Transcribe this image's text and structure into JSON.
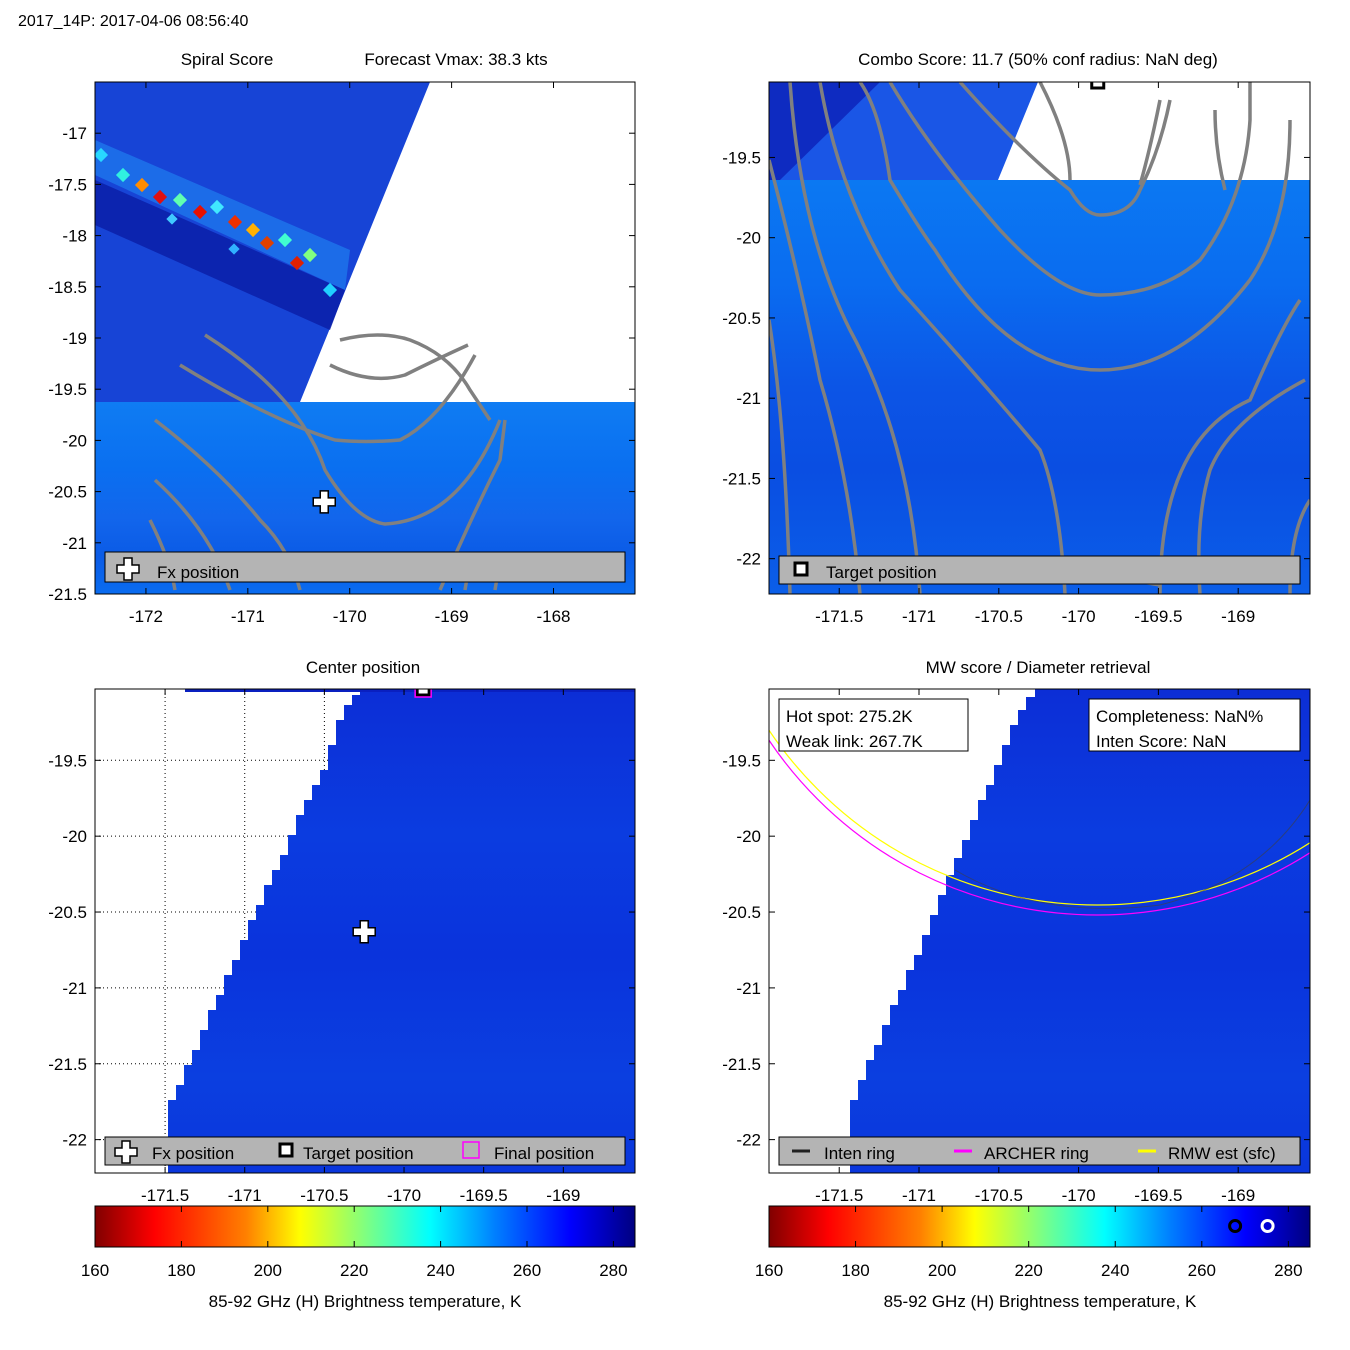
{
  "header": {
    "title": "2017_14P: 2017-04-06 08:56:40"
  },
  "colors": {
    "background_field": "#0a7af5",
    "deep_blue": "#0d30d8",
    "contour": "#808080",
    "legend_bg": "#b4b4b4",
    "inten_ring": "#202020",
    "archer_ring": "#ff00ff",
    "rmw_ring": "#ffff00",
    "final_position": "#ff00ff"
  },
  "colormap": {
    "name": "jet",
    "stops": [
      "#800000",
      "#ff0000",
      "#ff8000",
      "#ffff00",
      "#80ff80",
      "#00ffff",
      "#0080ff",
      "#0000ff",
      "#000080"
    ],
    "tick_values": [
      160,
      180,
      200,
      220,
      240,
      260,
      280
    ],
    "range": [
      160,
      285
    ],
    "label": "85-92 GHz (H) Brightness temperature, K"
  },
  "panels": {
    "spiral": {
      "title_left": "Spiral Score",
      "title_right": "Forecast Vmax: 38.3 kts",
      "xlim": [
        -172.5,
        -167.2
      ],
      "ylim": [
        -21.5,
        -16.5
      ],
      "xticks": [
        -172,
        -171,
        -170,
        -169,
        -168
      ],
      "xtick_labels": [
        "-172",
        "-171",
        "-170",
        "-169",
        "-168"
      ],
      "yticks": [
        -17,
        -17.5,
        -18,
        -18.5,
        -19,
        -19.5,
        -20,
        -20.5,
        -21,
        -21.5
      ],
      "ytick_labels": [
        "-17",
        "-17.5",
        "-18",
        "-18.5",
        "-19",
        "-19.5",
        "-20",
        "-20.5",
        "-21",
        "-21.5"
      ],
      "fx_position": {
        "lon": -170.25,
        "lat": -20.6
      },
      "legend": {
        "fx_label": "Fx position"
      }
    },
    "combo": {
      "title": "Combo Score: 11.7  (50% conf radius: NaN deg)",
      "xlim": [
        -171.94,
        -168.55
      ],
      "ylim": [
        -22.22,
        -19.03
      ],
      "xticks": [
        -171.5,
        -171,
        -170.5,
        -170,
        -169.5,
        -169
      ],
      "xtick_labels": [
        "-171.5",
        "-171",
        "-170.5",
        "-170",
        "-169.5",
        "-169"
      ],
      "yticks": [
        -19.5,
        -20,
        -20.5,
        -21,
        -21.5,
        -22
      ],
      "ytick_labels": [
        "-19.5",
        "-20",
        "-20.5",
        "-21",
        "-21.5",
        "-22"
      ],
      "target_position": {
        "lon": -169.88,
        "lat": -19.03
      },
      "legend": {
        "target_label": "Target position"
      }
    },
    "center": {
      "title": "Center position",
      "xlim": [
        -171.94,
        -168.55
      ],
      "ylim": [
        -22.22,
        -19.03
      ],
      "xticks": [
        -171.5,
        -171,
        -170.5,
        -170,
        -169.5,
        -169
      ],
      "xtick_labels": [
        "-171.5",
        "-171",
        "-170.5",
        "-170",
        "-169.5",
        "-169"
      ],
      "yticks": [
        -19.5,
        -20,
        -20.5,
        -21,
        -21.5,
        -22
      ],
      "ytick_labels": [
        "-19.5",
        "-20",
        "-20.5",
        "-21",
        "-21.5",
        "-22"
      ],
      "fx_position": {
        "lon": -170.25,
        "lat": -20.63
      },
      "target_position": {
        "lon": -169.88,
        "lat": -19.03
      },
      "legend": {
        "fx_label": "Fx position",
        "target_label": "Target position",
        "final_label": "Final position"
      }
    },
    "mw": {
      "title": "MW score / Diameter retrieval",
      "xlim": [
        -171.94,
        -168.55
      ],
      "ylim": [
        -22.22,
        -19.03
      ],
      "xticks": [
        -171.5,
        -171,
        -170.5,
        -170,
        -169.5,
        -169
      ],
      "xtick_labels": [
        "-171.5",
        "-171",
        "-170.5",
        "-170",
        "-169.5",
        "-169"
      ],
      "yticks": [
        -19.5,
        -20,
        -20.5,
        -21,
        -21.5,
        -22
      ],
      "ytick_labels": [
        "-19.5",
        "-20",
        "-20.5",
        "-21",
        "-21.5",
        "-22"
      ],
      "hot_spot": "Hot spot: 275.2K",
      "weak_link": "Weak link: 267.7K",
      "completeness": "Completeness: NaN%",
      "inten_score": "Inten Score: NaN",
      "hot_spot_value": 275.2,
      "weak_link_value": 267.7,
      "legend": {
        "inten_label": "Inten ring",
        "archer_label": "ARCHER ring",
        "rmw_label": "RMW est (sfc)"
      }
    }
  }
}
